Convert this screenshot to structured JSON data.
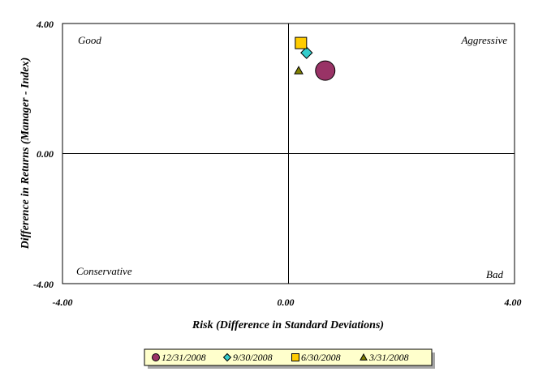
{
  "chart_data": {
    "type": "scatter",
    "xlabel": "Risk (Difference in Standard Deviations)",
    "ylabel": "Difference in Returns (Manager - Index)",
    "xlim": [
      -4,
      4
    ],
    "ylim": [
      -4,
      4
    ],
    "x_ticks": [
      "-4.00",
      "0.00",
      "4.00"
    ],
    "y_ticks": [
      "4.00",
      "0.00",
      "-4.00"
    ],
    "grid": false,
    "legend_position": "bottom",
    "quadrant_labels": {
      "top_left": "Good",
      "top_right": "Aggressive",
      "bottom_left": "Conservative",
      "bottom_right": "Bad"
    },
    "series": [
      {
        "name": "12/31/2008",
        "marker": "circle",
        "color": "#993366",
        "x": 0.65,
        "y": 2.55,
        "size": "large"
      },
      {
        "name": "9/30/2008",
        "marker": "diamond",
        "color": "#33cccc",
        "x": 0.32,
        "y": 3.1,
        "size": "medium"
      },
      {
        "name": "6/30/2008",
        "marker": "square",
        "color": "#ffcc00",
        "x": 0.22,
        "y": 3.4,
        "size": "medium"
      },
      {
        "name": "3/31/2008",
        "marker": "triangle",
        "color": "#808000",
        "x": 0.18,
        "y": 2.55,
        "size": "small"
      }
    ]
  }
}
